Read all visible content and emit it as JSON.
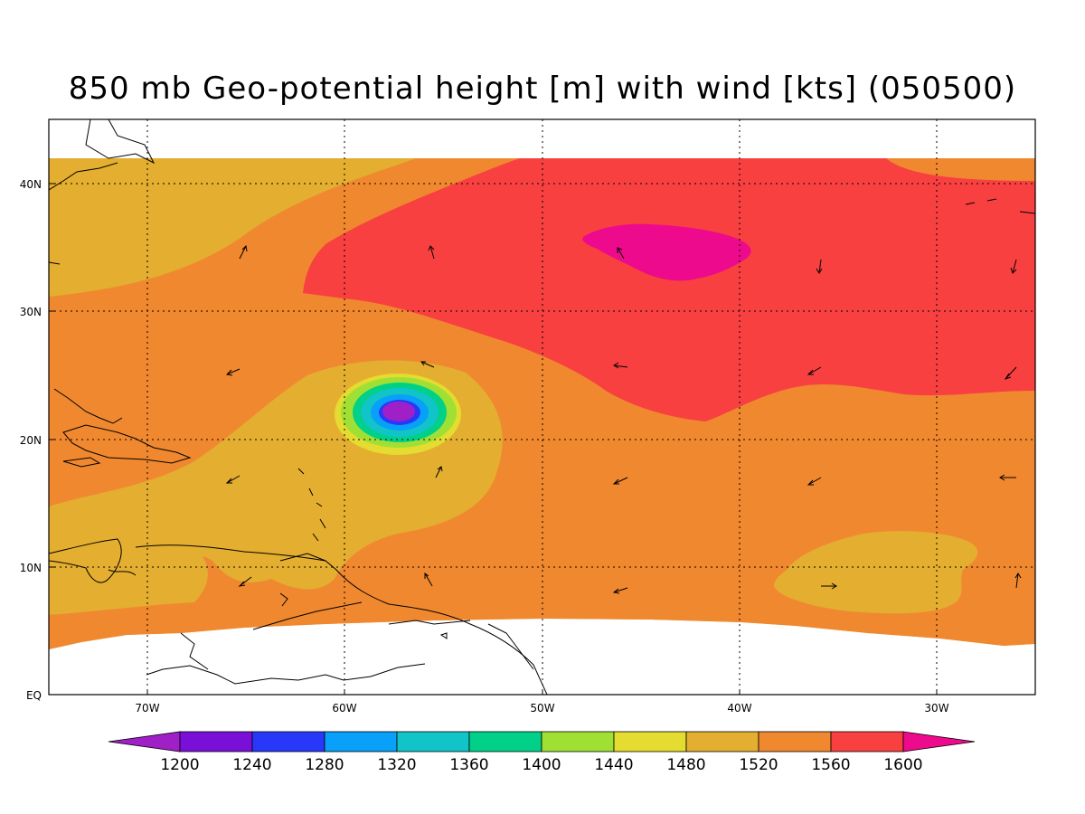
{
  "title": "850 mb Geo-potential height [m] with wind [kts] (050500)",
  "lon_labels": [
    "70W",
    "60W",
    "50W",
    "40W",
    "30W"
  ],
  "lat_labels": [
    "EQ",
    "10N",
    "20N",
    "30N",
    "40N"
  ],
  "colorbar": {
    "levels": [
      "1200",
      "1240",
      "1280",
      "1320",
      "1360",
      "1400",
      "1440",
      "1480",
      "1520",
      "1560",
      "1600"
    ],
    "colors": [
      "#a020c8",
      "#7a10d8",
      "#2838f8",
      "#08a0f8",
      "#10c4c8",
      "#00d088",
      "#a0e034",
      "#e4dc30",
      "#e4ae30",
      "#f08830",
      "#f84040",
      "#ee0a8c"
    ]
  },
  "fill_colors": {
    "c1480_1520": "#e4ae30",
    "c1520_1560": "#f08830",
    "c1560_1600": "#f84040",
    "c1600_plus": "#ee0a8c",
    "low_core": "#a020c8"
  }
}
